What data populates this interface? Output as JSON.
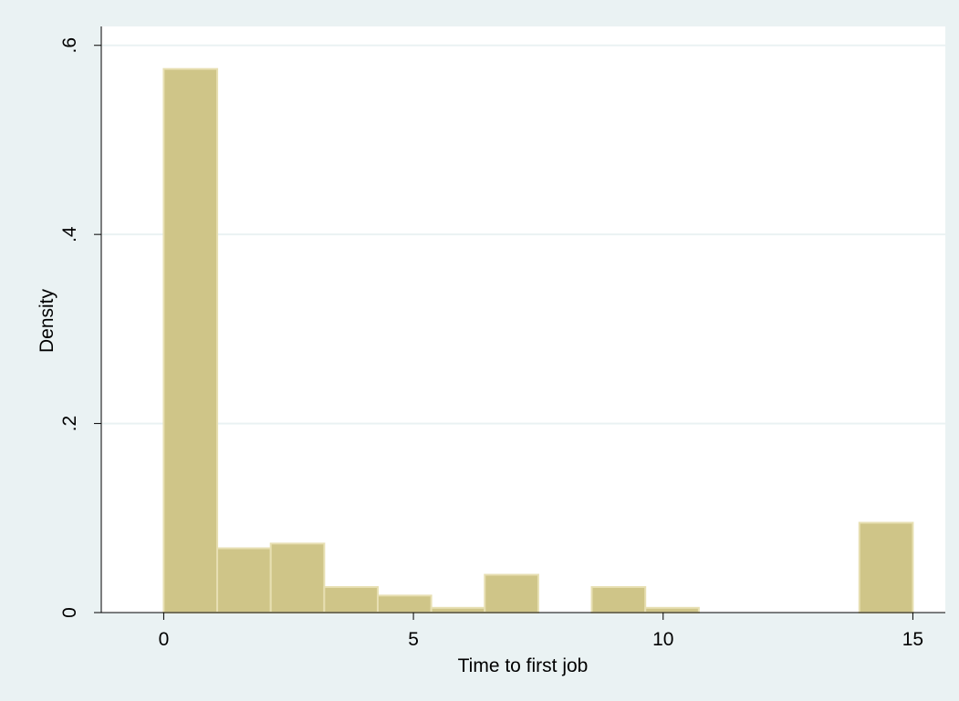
{
  "chart_data": {
    "type": "bar",
    "subtype": "histogram",
    "title": "",
    "xlabel": "Time to first job",
    "ylabel": "Density",
    "xlim": [
      -1.25,
      15.65
    ],
    "ylim": [
      0,
      0.62
    ],
    "x_ticks": [
      0,
      5,
      10,
      15
    ],
    "x_tick_labels": [
      "0",
      "5",
      "10",
      "15"
    ],
    "y_ticks": [
      0,
      0.2,
      0.4,
      0.6
    ],
    "y_tick_labels": [
      "0",
      ".2",
      ".4",
      ".6"
    ],
    "grid": true,
    "legend": "none",
    "bin_edges": [
      0,
      1.0714,
      2.1429,
      3.2143,
      4.2857,
      5.3571,
      6.4286,
      7.5,
      8.5714,
      9.6429,
      10.7143,
      11.7857,
      12.8571,
      13.9286,
      15
    ],
    "values": [
      0.575,
      0.068,
      0.073,
      0.027,
      0.018,
      0.005,
      0.04,
      0.0,
      0.027,
      0.005,
      0.0,
      0.0,
      0.0,
      0.095
    ],
    "colors": {
      "bar_fill": "#cfc588",
      "bar_stroke": "#e7dfb2",
      "plot_background": "#ffffff",
      "page_background": "#eaf2f3",
      "grid": "#eaf2f3"
    }
  }
}
